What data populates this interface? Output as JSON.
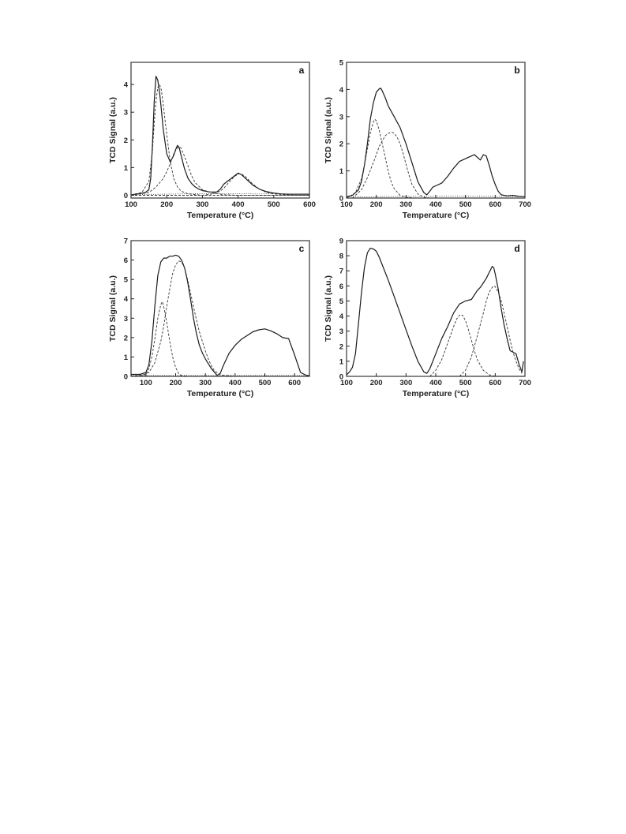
{
  "chart_data": [
    {
      "panel": "a",
      "type": "line",
      "xlabel": "Temperature (°C)",
      "ylabel": "TCD Signal (a.u.)",
      "xlim": [
        100,
        600
      ],
      "ylim": [
        -0.1,
        4.8
      ],
      "xticks": [
        100,
        200,
        300,
        400,
        500,
        600
      ],
      "yticks": [
        0,
        1,
        2,
        3,
        4
      ],
      "series": [
        {
          "style": "solid",
          "x": [
            100,
            120,
            140,
            150,
            155,
            160,
            165,
            170,
            175,
            180,
            185,
            190,
            200,
            210,
            220,
            225,
            230,
            235,
            240,
            250,
            260,
            270,
            280,
            290,
            300,
            320,
            340,
            350,
            360,
            370,
            380,
            390,
            400,
            410,
            420,
            430,
            440,
            460,
            480,
            500,
            520,
            540,
            560,
            580,
            600
          ],
          "y": [
            0.02,
            0.05,
            0.1,
            0.2,
            0.6,
            1.8,
            3.4,
            4.3,
            4.15,
            3.7,
            3.1,
            2.4,
            1.5,
            1.2,
            1.45,
            1.65,
            1.8,
            1.72,
            1.45,
            0.95,
            0.6,
            0.42,
            0.3,
            0.22,
            0.17,
            0.12,
            0.12,
            0.22,
            0.4,
            0.5,
            0.6,
            0.7,
            0.8,
            0.74,
            0.62,
            0.5,
            0.38,
            0.22,
            0.13,
            0.08,
            0.05,
            0.04,
            0.04,
            0.04,
            0.04
          ]
        },
        {
          "style": "dashed",
          "x": [
            100,
            130,
            150,
            160,
            165,
            170,
            175,
            180,
            185,
            190,
            200,
            210,
            220,
            230,
            240,
            260,
            300,
            350,
            400,
            450,
            500,
            550,
            600
          ],
          "y": [
            0.02,
            0.1,
            0.5,
            1.6,
            2.6,
            3.4,
            3.9,
            4.0,
            3.8,
            3.3,
            2.2,
            1.2,
            0.6,
            0.3,
            0.15,
            0.05,
            0.0,
            0.0,
            0.0,
            0.0,
            0.0,
            0.0,
            0.0
          ]
        },
        {
          "style": "dashed",
          "x": [
            100,
            150,
            170,
            190,
            200,
            210,
            220,
            230,
            235,
            240,
            250,
            260,
            270,
            280,
            300,
            330,
            360,
            400,
            450,
            500,
            550,
            600
          ],
          "y": [
            0.0,
            0.1,
            0.3,
            0.6,
            0.85,
            1.15,
            1.5,
            1.72,
            1.75,
            1.7,
            1.4,
            1.05,
            0.7,
            0.45,
            0.2,
            0.08,
            0.02,
            0.0,
            0.0,
            0.0,
            0.0,
            0.0
          ]
        },
        {
          "style": "dashed",
          "x": [
            100,
            300,
            330,
            350,
            360,
            370,
            380,
            390,
            400,
            405,
            410,
            420,
            430,
            440,
            460,
            480,
            500,
            530,
            560,
            600
          ],
          "y": [
            0.0,
            0.0,
            0.05,
            0.15,
            0.25,
            0.4,
            0.55,
            0.68,
            0.76,
            0.78,
            0.76,
            0.68,
            0.55,
            0.42,
            0.22,
            0.1,
            0.05,
            0.02,
            0.0,
            0.0
          ]
        },
        {
          "style": "dotted",
          "x": [
            100,
            150,
            200,
            250,
            300,
            350,
            400,
            450,
            500,
            550,
            600
          ],
          "y": [
            0.03,
            0.03,
            0.04,
            0.05,
            0.06,
            0.06,
            0.06,
            0.05,
            0.05,
            0.04,
            0.04
          ]
        }
      ]
    },
    {
      "panel": "b",
      "type": "line",
      "xlabel": "Temperature (°C)",
      "ylabel": "TCD Signal (a.u.)",
      "xlim": [
        100,
        700
      ],
      "ylim": [
        0,
        5
      ],
      "xticks": [
        100,
        200,
        300,
        400,
        500,
        600,
        700
      ],
      "yticks": [
        0,
        1,
        2,
        3,
        4,
        5
      ],
      "series": [
        {
          "style": "solid",
          "x": [
            100,
            120,
            140,
            150,
            160,
            170,
            180,
            190,
            200,
            210,
            215,
            220,
            230,
            240,
            250,
            260,
            280,
            300,
            320,
            340,
            360,
            370,
            380,
            390,
            400,
            420,
            440,
            460,
            480,
            500,
            520,
            530,
            540,
            550,
            560,
            570,
            580,
            590,
            600,
            610,
            620,
            640,
            660,
            680,
            700
          ],
          "y": [
            0.05,
            0.1,
            0.3,
            0.6,
            1.2,
            2.0,
            2.9,
            3.5,
            3.9,
            4.02,
            4.05,
            3.95,
            3.7,
            3.4,
            3.2,
            3.0,
            2.6,
            2.0,
            1.3,
            0.6,
            0.2,
            0.12,
            0.25,
            0.4,
            0.45,
            0.55,
            0.8,
            1.1,
            1.35,
            1.45,
            1.55,
            1.6,
            1.5,
            1.4,
            1.6,
            1.55,
            1.2,
            0.8,
            0.5,
            0.25,
            0.12,
            0.08,
            0.1,
            0.06,
            0.05
          ]
        },
        {
          "style": "dashed",
          "x": [
            100,
            130,
            150,
            160,
            170,
            180,
            190,
            195,
            200,
            210,
            220,
            230,
            240,
            250,
            260,
            280,
            300,
            330,
            360
          ],
          "y": [
            0.0,
            0.2,
            0.7,
            1.2,
            1.8,
            2.4,
            2.8,
            2.9,
            2.85,
            2.5,
            2.0,
            1.5,
            1.0,
            0.6,
            0.35,
            0.1,
            0.03,
            0.0,
            0.0
          ]
        },
        {
          "style": "dashed",
          "x": [
            120,
            150,
            170,
            190,
            200,
            210,
            220,
            230,
            240,
            250,
            255,
            260,
            270,
            280,
            290,
            300,
            310,
            320,
            340,
            360,
            380
          ],
          "y": [
            0.0,
            0.3,
            0.75,
            1.3,
            1.6,
            1.9,
            2.1,
            2.3,
            2.38,
            2.42,
            2.42,
            2.38,
            2.25,
            2.0,
            1.65,
            1.25,
            0.85,
            0.5,
            0.15,
            0.03,
            0.0
          ]
        },
        {
          "style": "dotted",
          "x": [
            100,
            200,
            300,
            400,
            500,
            600,
            700
          ],
          "y": [
            0.05,
            0.05,
            0.06,
            0.07,
            0.07,
            0.06,
            0.05
          ]
        }
      ]
    },
    {
      "panel": "c",
      "type": "line",
      "xlabel": "Temperature (°C)",
      "ylabel": "TCD Signal (a.u.)",
      "xlim": [
        50,
        650
      ],
      "ylim": [
        0,
        7
      ],
      "xticks": [
        100,
        200,
        300,
        400,
        500,
        600
      ],
      "yticks": [
        0,
        1,
        2,
        3,
        4,
        5,
        6,
        7
      ],
      "series": [
        {
          "style": "solid",
          "x": [
            50,
            80,
            100,
            110,
            120,
            130,
            140,
            150,
            160,
            170,
            180,
            190,
            200,
            210,
            220,
            230,
            240,
            250,
            260,
            270,
            280,
            290,
            300,
            320,
            340,
            350,
            360,
            380,
            400,
            420,
            440,
            460,
            480,
            500,
            520,
            540,
            560,
            580,
            600,
            620,
            640,
            650
          ],
          "y": [
            0.1,
            0.1,
            0.2,
            0.6,
            1.8,
            3.6,
            5.2,
            5.9,
            6.1,
            6.1,
            6.2,
            6.2,
            6.25,
            6.2,
            6.0,
            5.6,
            4.9,
            4.0,
            3.0,
            2.2,
            1.6,
            1.2,
            0.9,
            0.4,
            0.05,
            0.15,
            0.55,
            1.2,
            1.6,
            1.9,
            2.1,
            2.3,
            2.4,
            2.45,
            2.35,
            2.2,
            2.0,
            1.95,
            1.1,
            0.2,
            0.05,
            0.05
          ]
        },
        {
          "style": "dashed",
          "x": [
            50,
            100,
            110,
            120,
            130,
            140,
            150,
            155,
            160,
            170,
            180,
            190,
            200,
            210,
            220,
            240
          ],
          "y": [
            0.0,
            0.1,
            0.4,
            1.0,
            1.9,
            3.0,
            3.7,
            3.85,
            3.6,
            2.8,
            1.8,
            1.0,
            0.45,
            0.15,
            0.05,
            0.0
          ]
        },
        {
          "style": "dashed",
          "x": [
            80,
            110,
            130,
            150,
            160,
            170,
            180,
            190,
            200,
            210,
            220,
            230,
            240,
            250,
            260,
            270,
            280,
            290,
            300,
            310,
            320,
            330,
            350,
            400
          ],
          "y": [
            0.0,
            0.2,
            0.7,
            1.8,
            2.6,
            3.6,
            4.5,
            5.3,
            5.75,
            5.95,
            5.9,
            5.6,
            5.0,
            4.3,
            3.6,
            2.9,
            2.3,
            1.8,
            1.3,
            0.9,
            0.55,
            0.3,
            0.08,
            0.0
          ]
        },
        {
          "style": "dotted",
          "x": [
            50,
            150,
            250,
            350,
            450,
            550,
            650
          ],
          "y": [
            0.05,
            0.05,
            0.05,
            0.05,
            0.05,
            0.05,
            0.05
          ]
        }
      ]
    },
    {
      "panel": "d",
      "type": "line",
      "xlabel": "Temperature (°C)",
      "ylabel": "TCD Signal (a.u.)",
      "xlim": [
        100,
        700
      ],
      "ylim": [
        0,
        9
      ],
      "xticks": [
        100,
        200,
        300,
        400,
        500,
        600,
        700
      ],
      "yticks": [
        0,
        1,
        2,
        3,
        4,
        5,
        6,
        7,
        8,
        9
      ],
      "series": [
        {
          "style": "solid",
          "x": [
            100,
            110,
            120,
            130,
            140,
            150,
            160,
            170,
            180,
            190,
            200,
            210,
            220,
            240,
            260,
            280,
            300,
            320,
            340,
            360,
            370,
            380,
            400,
            420,
            440,
            460,
            480,
            500,
            520,
            540,
            550,
            560,
            570,
            580,
            590,
            595,
            600,
            610,
            620,
            630,
            640,
            650,
            660,
            670,
            680,
            690,
            695
          ],
          "y": [
            0.1,
            0.3,
            0.6,
            1.5,
            3.5,
            5.5,
            7.2,
            8.2,
            8.5,
            8.45,
            8.3,
            7.9,
            7.4,
            6.4,
            5.3,
            4.2,
            3.1,
            2.0,
            1.0,
            0.3,
            0.2,
            0.5,
            1.5,
            2.5,
            3.3,
            4.2,
            4.8,
            5.0,
            5.1,
            5.7,
            5.9,
            6.2,
            6.5,
            6.9,
            7.3,
            7.2,
            6.8,
            5.8,
            4.5,
            3.4,
            2.5,
            1.7,
            1.6,
            1.5,
            0.8,
            0.3,
            1.0
          ]
        },
        {
          "style": "dashed",
          "x": [
            380,
            400,
            420,
            440,
            460,
            470,
            480,
            485,
            490,
            500,
            510,
            520,
            530,
            540,
            560,
            580,
            600
          ],
          "y": [
            0.0,
            0.4,
            1.1,
            2.2,
            3.3,
            3.8,
            4.05,
            4.1,
            4.05,
            3.7,
            3.1,
            2.4,
            1.7,
            1.1,
            0.4,
            0.1,
            0.0
          ]
        },
        {
          "style": "dashed",
          "x": [
            480,
            500,
            520,
            540,
            560,
            570,
            580,
            590,
            595,
            600,
            610,
            620,
            630,
            640,
            650,
            660,
            670,
            680,
            690
          ],
          "y": [
            0.0,
            0.4,
            1.3,
            2.7,
            4.2,
            5.0,
            5.6,
            5.9,
            6.0,
            5.95,
            5.6,
            5.0,
            4.2,
            3.3,
            2.4,
            1.6,
            1.0,
            0.5,
            0.2
          ]
        },
        {
          "style": "dotted",
          "x": [
            380,
            450,
            500,
            550,
            600,
            650,
            700
          ],
          "y": [
            0.0,
            0.02,
            0.02,
            0.02,
            0.02,
            0.02,
            0.02
          ]
        }
      ]
    }
  ]
}
